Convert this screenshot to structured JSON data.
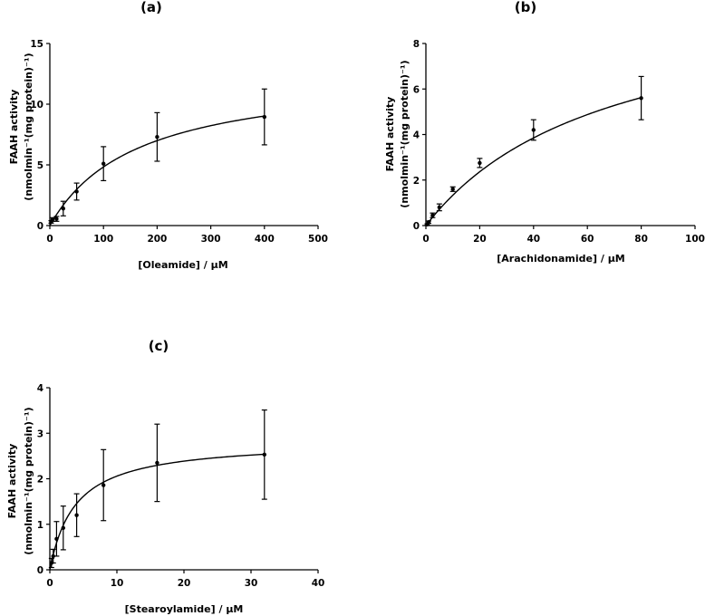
{
  "chart_data": [
    {
      "type": "scatter",
      "panel_label": "(a)",
      "xlabel": "[Oleamide] / μM",
      "ylabel_line1": "FAAH activity",
      "ylabel_line2": "(nmolmin⁻¹(mg protein)⁻¹)",
      "xlim": [
        0,
        500
      ],
      "ylim": [
        0,
        15
      ],
      "xticks": [
        0,
        100,
        200,
        300,
        400,
        500
      ],
      "yticks": [
        0,
        5,
        10,
        15
      ],
      "points": [
        {
          "x": 2.5,
          "y": 0.3,
          "err": 0.1
        },
        {
          "x": 5,
          "y": 0.5,
          "err": 0.15
        },
        {
          "x": 12.5,
          "y": 0.55,
          "err": 0.2
        },
        {
          "x": 25,
          "y": 1.4,
          "err": 0.6
        },
        {
          "x": 50,
          "y": 2.8,
          "err": 0.7
        },
        {
          "x": 100,
          "y": 5.1,
          "err": 1.4
        },
        {
          "x": 200,
          "y": 7.3,
          "err": 2.0
        },
        {
          "x": 400,
          "y": 8.95,
          "err": 2.3
        }
      ],
      "fit": {
        "model": "michaelis-menten",
        "vmax": 12.7,
        "km": 163
      }
    },
    {
      "type": "scatter",
      "panel_label": "(b)",
      "xlabel": "[Arachidonamide] / μM",
      "ylabel_line1": "FAAH activity",
      "ylabel_line2": "(nmolmin⁻¹(mg protein)⁻¹)",
      "xlim": [
        0,
        100
      ],
      "ylim": [
        0,
        8
      ],
      "xticks": [
        0,
        20,
        40,
        60,
        80,
        100
      ],
      "yticks": [
        0,
        2,
        4,
        6,
        8
      ],
      "points": [
        {
          "x": 0.5,
          "y": 0.05,
          "err": 0.03
        },
        {
          "x": 1,
          "y": 0.15,
          "err": 0.05
        },
        {
          "x": 2.5,
          "y": 0.45,
          "err": 0.1
        },
        {
          "x": 5,
          "y": 0.8,
          "err": 0.15
        },
        {
          "x": 10,
          "y": 1.6,
          "err": 0.1
        },
        {
          "x": 20,
          "y": 2.75,
          "err": 0.2
        },
        {
          "x": 40,
          "y": 4.2,
          "err": 0.45
        },
        {
          "x": 80,
          "y": 5.6,
          "err": 0.95
        }
      ],
      "fit": {
        "model": "michaelis-menten",
        "vmax": 10.4,
        "km": 68
      }
    },
    {
      "type": "scatter",
      "panel_label": "(c)",
      "xlabel": "[Stearoylamide] / μM",
      "ylabel_line1": "FAAH activity",
      "ylabel_line2": "(nmolmin⁻¹(mg protein)⁻¹)",
      "xlim": [
        0,
        40
      ],
      "ylim": [
        0,
        4
      ],
      "xticks": [
        0,
        10,
        20,
        30,
        40
      ],
      "yticks": [
        0,
        1,
        2,
        3,
        4
      ],
      "points": [
        {
          "x": 0.25,
          "y": 0.15,
          "err": 0.1
        },
        {
          "x": 0.5,
          "y": 0.3,
          "err": 0.15
        },
        {
          "x": 1,
          "y": 0.68,
          "err": 0.38
        },
        {
          "x": 2,
          "y": 0.92,
          "err": 0.48
        },
        {
          "x": 4,
          "y": 1.2,
          "err": 0.47
        },
        {
          "x": 8,
          "y": 1.86,
          "err": 0.78
        },
        {
          "x": 16,
          "y": 2.35,
          "err": 0.85
        },
        {
          "x": 32,
          "y": 2.53,
          "err": 0.98
        }
      ],
      "fit": {
        "model": "michaelis-menten",
        "vmax": 2.84,
        "km": 3.8
      }
    }
  ]
}
